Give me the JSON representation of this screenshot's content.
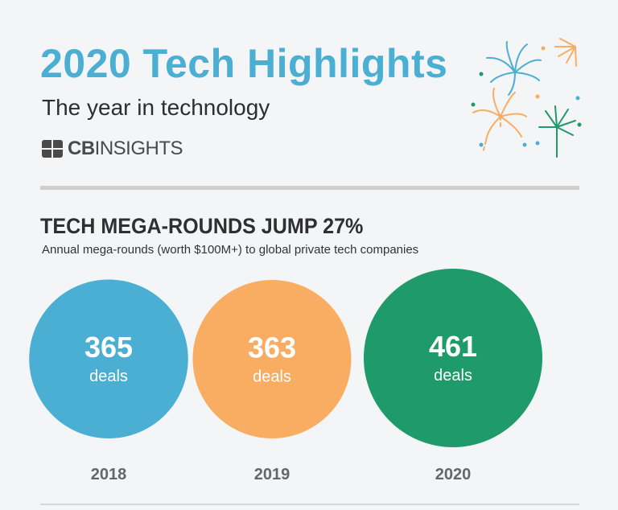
{
  "header": {
    "title": "2020 Tech Highlights",
    "subtitle": "The year in technology",
    "brand_bold": "CB",
    "brand_rest": "INSIGHTS"
  },
  "section": {
    "title": "TECH MEGA-ROUNDS JUMP 27%",
    "subtitle": "Annual mega-rounds (worth $100M+) to global private tech companies"
  },
  "chart_data": {
    "type": "bubble",
    "title": "TECH MEGA-ROUNDS JUMP 27%",
    "subtitle": "Annual mega-rounds (worth $100M+) to global private tech companies",
    "categories": [
      "2018",
      "2019",
      "2020"
    ],
    "values": [
      365,
      363,
      461
    ],
    "unit_label": "deals",
    "colors": [
      "#4baed3",
      "#f8ad62",
      "#1f9a6a"
    ]
  },
  "colors": {
    "title": "#4baed3",
    "firework_blue": "#4baed3",
    "firework_orange": "#f8ad62",
    "firework_green": "#1f9a6a"
  }
}
